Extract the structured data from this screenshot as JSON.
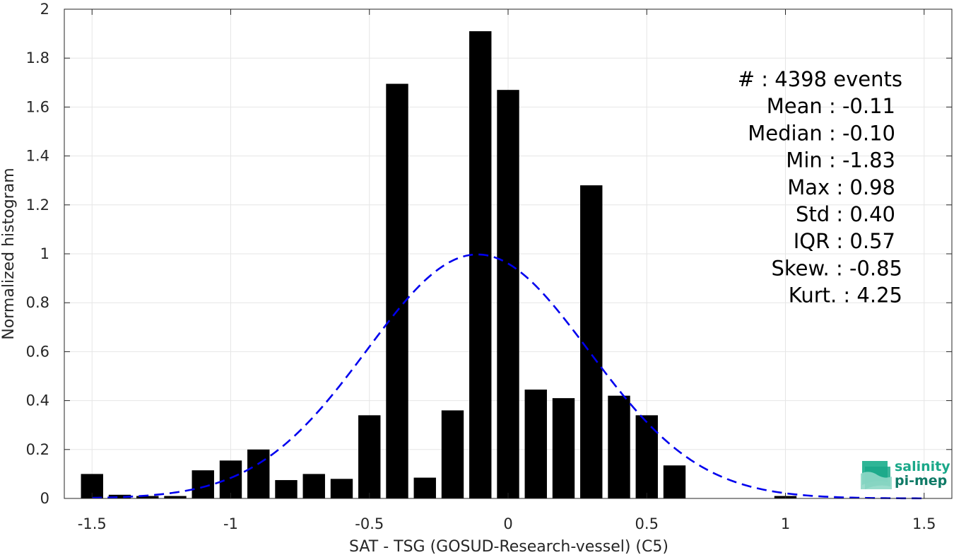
{
  "chart_data": {
    "type": "bar",
    "xlabel": "SAT - TSG (GOSUD-Research-vessel) (C5)",
    "ylabel": "Normalized histogram",
    "xlim": [
      -1.6,
      1.6
    ],
    "ylim": [
      0,
      2
    ],
    "grid": true,
    "x_ticks": [
      -1.5,
      -1,
      -0.5,
      0,
      0.5,
      1,
      1.5
    ],
    "x_tick_labels": [
      "-1.5",
      "-1",
      "-0.5",
      "0",
      "0.5",
      "1",
      "1.5"
    ],
    "y_ticks": [
      0,
      0.2,
      0.4,
      0.6,
      0.8,
      1,
      1.2,
      1.4,
      1.6,
      1.8,
      2
    ],
    "y_tick_labels": [
      "0",
      "0.2",
      "0.4",
      "0.6",
      "0.8",
      "1",
      "1.2",
      "1.4",
      "1.6",
      "1.8",
      "2"
    ],
    "bin_width": 0.1,
    "bin_centers": [
      -1.5,
      -1.4,
      -1.3,
      -1.2,
      -1.1,
      -1.0,
      -0.9,
      -0.8,
      -0.7,
      -0.6,
      -0.5,
      -0.4,
      -0.3,
      -0.2,
      -0.1,
      0.0,
      0.1,
      0.2,
      0.3,
      0.4,
      0.5,
      0.6,
      0.7,
      0.8,
      0.9,
      1.0
    ],
    "values": [
      0.1,
      0.015,
      0.01,
      0.01,
      0.115,
      0.155,
      0.2,
      0.075,
      0.1,
      0.08,
      0.34,
      1.695,
      0.085,
      0.36,
      1.91,
      1.67,
      0.445,
      0.41,
      1.28,
      0.42,
      0.34,
      0.135,
      0,
      0,
      0,
      0.01
    ],
    "fit_curve": {
      "type": "normal",
      "mean": -0.11,
      "std": 0.4,
      "x_range": [
        -1.5,
        1.5
      ],
      "color": "#0000ee",
      "style": "dashed"
    },
    "bar_color": "#000000",
    "stats_lines": [
      "#  : 4398 events",
      "Mean : -0.11",
      "Median : -0.10",
      "Min : -1.83",
      "Max : 0.98",
      "Std : 0.40",
      "IQR : 0.57",
      "Skew. : -0.85",
      "Kurt. : 4.25"
    ]
  },
  "logo": {
    "line1": "salinity",
    "line2": "pi-mep",
    "color_primary": "#1aa889",
    "color_dark": "#0f7a66"
  }
}
